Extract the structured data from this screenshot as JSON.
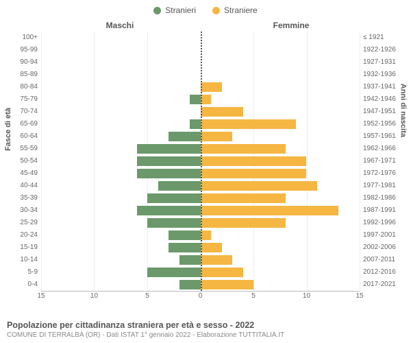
{
  "legend": {
    "male": {
      "label": "Stranieri",
      "color": "#6b996b"
    },
    "female": {
      "label": "Straniere",
      "color": "#f5b642"
    }
  },
  "headers": {
    "left": "Maschi",
    "right": "Femmine"
  },
  "axis_titles": {
    "left": "Fasce di età",
    "right": "Anni di nascita"
  },
  "x_axis": {
    "max": 15,
    "ticks": [
      0,
      5,
      10,
      15
    ]
  },
  "chart": {
    "type": "population-pyramid",
    "bar_colors": {
      "male": "#6b996b",
      "female": "#f5b642"
    },
    "background_color": "#ffffff",
    "grid_color": "#eeeeee"
  },
  "rows": [
    {
      "age": "100+",
      "birth": "≤ 1921",
      "m": 0,
      "f": 0
    },
    {
      "age": "95-99",
      "birth": "1922-1926",
      "m": 0,
      "f": 0
    },
    {
      "age": "90-94",
      "birth": "1927-1931",
      "m": 0,
      "f": 0
    },
    {
      "age": "85-89",
      "birth": "1932-1936",
      "m": 0,
      "f": 0
    },
    {
      "age": "80-84",
      "birth": "1937-1941",
      "m": 0,
      "f": 2
    },
    {
      "age": "75-79",
      "birth": "1942-1946",
      "m": 1,
      "f": 1
    },
    {
      "age": "70-74",
      "birth": "1947-1951",
      "m": 0,
      "f": 4
    },
    {
      "age": "65-69",
      "birth": "1952-1956",
      "m": 1,
      "f": 9
    },
    {
      "age": "60-64",
      "birth": "1957-1961",
      "m": 3,
      "f": 3
    },
    {
      "age": "55-59",
      "birth": "1962-1966",
      "m": 6,
      "f": 8
    },
    {
      "age": "50-54",
      "birth": "1967-1971",
      "m": 6,
      "f": 10
    },
    {
      "age": "45-49",
      "birth": "1972-1976",
      "m": 6,
      "f": 10
    },
    {
      "age": "40-44",
      "birth": "1977-1981",
      "m": 4,
      "f": 11
    },
    {
      "age": "35-39",
      "birth": "1982-1986",
      "m": 5,
      "f": 8
    },
    {
      "age": "30-34",
      "birth": "1987-1991",
      "m": 6,
      "f": 13
    },
    {
      "age": "25-29",
      "birth": "1992-1996",
      "m": 5,
      "f": 8
    },
    {
      "age": "20-24",
      "birth": "1997-2001",
      "m": 3,
      "f": 1
    },
    {
      "age": "15-19",
      "birth": "2002-2006",
      "m": 3,
      "f": 2
    },
    {
      "age": "10-14",
      "birth": "2007-2011",
      "m": 2,
      "f": 3
    },
    {
      "age": "5-9",
      "birth": "2012-2016",
      "m": 5,
      "f": 4
    },
    {
      "age": "0-4",
      "birth": "2017-2021",
      "m": 2,
      "f": 5
    }
  ],
  "footer": {
    "title": "Popolazione per cittadinanza straniera per età e sesso - 2022",
    "subtitle": "COMUNE DI TERRALBA (OR) - Dati ISTAT 1° gennaio 2022 - Elaborazione TUTTITALIA.IT"
  }
}
